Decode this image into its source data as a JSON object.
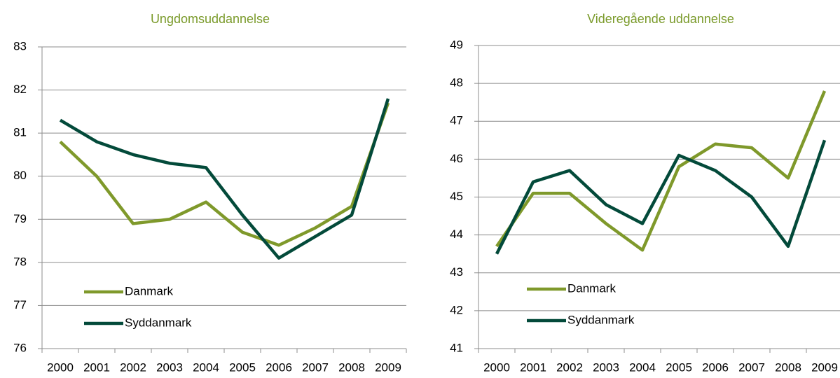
{
  "chart_data": [
    {
      "type": "line",
      "title": "Ungdomsuddannelse",
      "categories": [
        "2000",
        "2001",
        "2002",
        "2003",
        "2004",
        "2005",
        "2006",
        "2007",
        "2008",
        "2009"
      ],
      "series": [
        {
          "name": "Danmark",
          "color": "#7f992b",
          "values": [
            80.8,
            80.0,
            78.9,
            79.0,
            79.4,
            78.7,
            78.4,
            78.8,
            79.3,
            81.7
          ]
        },
        {
          "name": "Syddanmark",
          "color": "#034a3a",
          "values": [
            81.3,
            80.8,
            80.5,
            80.3,
            80.2,
            79.1,
            78.1,
            78.6,
            79.1,
            81.8
          ]
        }
      ],
      "ylim": [
        76,
        83
      ],
      "yticks": [
        76,
        77,
        78,
        79,
        80,
        81,
        82,
        83
      ],
      "grid": true,
      "legend": "lower left"
    },
    {
      "type": "line",
      "title": "Videregående uddannelse",
      "categories": [
        "2000",
        "2001",
        "2002",
        "2003",
        "2004",
        "2005",
        "2006",
        "2007",
        "2008",
        "2009"
      ],
      "series": [
        {
          "name": "Danmark",
          "color": "#7f992b",
          "values": [
            43.7,
            45.1,
            45.1,
            44.3,
            43.6,
            45.8,
            46.4,
            46.3,
            45.5,
            47.8
          ]
        },
        {
          "name": "Syddanmark",
          "color": "#034a3a",
          "values": [
            43.5,
            45.4,
            45.7,
            44.8,
            44.3,
            46.1,
            45.7,
            45.0,
            43.7,
            46.5
          ]
        }
      ],
      "ylim": [
        41,
        49
      ],
      "yticks": [
        41,
        42,
        43,
        44,
        45,
        46,
        47,
        48,
        49
      ],
      "grid": true,
      "legend": "lower left"
    }
  ]
}
